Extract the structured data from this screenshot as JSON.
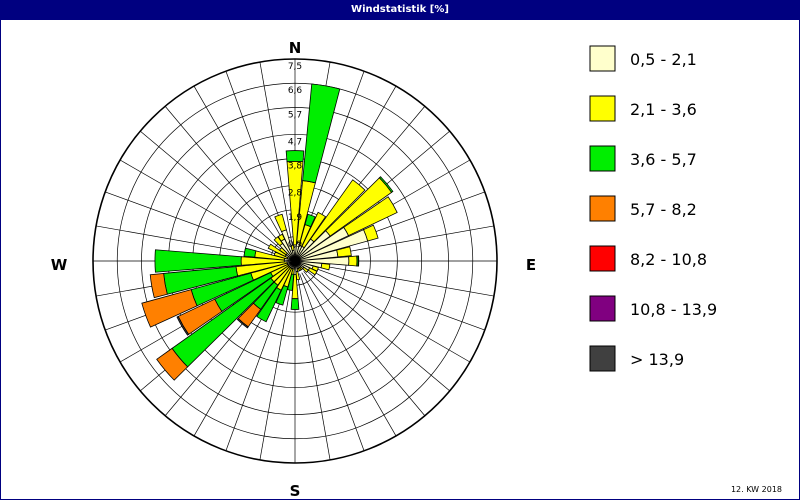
{
  "title": "Windstatistik [%]",
  "footer": "12. KW 2018",
  "chart_data": {
    "type": "polar-stacked-bar",
    "unit": "%",
    "compass": [
      "N",
      "E",
      "S",
      "W"
    ],
    "ring_labels": [
      "7,5",
      "6,6",
      "5,7",
      "4,7",
      "3,8",
      "2,8",
      "1,9",
      "0,9"
    ],
    "ring_values": [
      0.9,
      1.9,
      2.8,
      3.8,
      4.7,
      5.7,
      6.6,
      7.5
    ],
    "max": 7.5,
    "grid": true,
    "legend_position": "right",
    "classes": [
      {
        "label": "0,5 - 2,1",
        "color": "#ffffcc"
      },
      {
        "label": "2,1 - 3,6",
        "color": "#ffff00"
      },
      {
        "label": "3,6 - 5,7",
        "color": "#00ee00"
      },
      {
        "label": "5,7 - 8,2",
        "color": "#ff8000"
      },
      {
        "label": "8,2 - 10,8",
        "color": "#ff0000"
      },
      {
        "label": "10,8 - 13,9",
        "color": "#800080"
      },
      {
        "label": " > 13,9",
        "color": "#404040"
      }
    ],
    "sectors": [
      {
        "dir": 0,
        "values": [
          0.6,
          3.1,
          0.4,
          0,
          0,
          0,
          0
        ]
      },
      {
        "dir": 10,
        "values": [
          0.7,
          2.3,
          3.6,
          0,
          0,
          0,
          0
        ]
      },
      {
        "dir": 20,
        "values": [
          0.6,
          0.8,
          0.4,
          0,
          0,
          0,
          0
        ]
      },
      {
        "dir": 30,
        "values": [
          0.6,
          1.4,
          0,
          0,
          0,
          0,
          0
        ]
      },
      {
        "dir": 40,
        "values": [
          1.0,
          2.7,
          0,
          0,
          0,
          0,
          0
        ]
      },
      {
        "dir": 50,
        "values": [
          1.6,
          2.8,
          0.06,
          0,
          0,
          0,
          0
        ]
      },
      {
        "dir": 60,
        "values": [
          2.2,
          2.0,
          0,
          0,
          0,
          0,
          0
        ]
      },
      {
        "dir": 70,
        "values": [
          2.8,
          0.4,
          0,
          0,
          0,
          0,
          0
        ]
      },
      {
        "dir": 80,
        "values": [
          1.6,
          0.5,
          0,
          0,
          0,
          0,
          0
        ]
      },
      {
        "dir": 90,
        "values": [
          2.0,
          0.3,
          0.05,
          0,
          0,
          0,
          0.02
        ]
      },
      {
        "dir": 100,
        "values": [
          1.0,
          0.3,
          0,
          0,
          0,
          0,
          0
        ]
      },
      {
        "dir": 110,
        "values": [
          0.7,
          0.2,
          0,
          0,
          0,
          0,
          0
        ]
      },
      {
        "dir": 120,
        "values": [
          0.6,
          0.3,
          0,
          0,
          0,
          0,
          0
        ]
      },
      {
        "dir": 130,
        "values": [
          0.4,
          0.2,
          0,
          0,
          0,
          0,
          0
        ]
      },
      {
        "dir": 140,
        "values": [
          0.3,
          0.1,
          0,
          0,
          0,
          0,
          0
        ]
      },
      {
        "dir": 150,
        "values": [
          0.3,
          0.1,
          0,
          0,
          0,
          0,
          0
        ]
      },
      {
        "dir": 160,
        "values": [
          0.3,
          0.1,
          0,
          0,
          0,
          0,
          0
        ]
      },
      {
        "dir": 170,
        "values": [
          0.4,
          0.3,
          0,
          0,
          0,
          0,
          0
        ]
      },
      {
        "dir": 180,
        "values": [
          0.5,
          0.9,
          0.4,
          0,
          0,
          0,
          0
        ]
      },
      {
        "dir": 190,
        "values": [
          0.3,
          0.2,
          0.6,
          0,
          0,
          0,
          0
        ]
      },
      {
        "dir": 200,
        "values": [
          0.3,
          0.7,
          0.7,
          0,
          0,
          0,
          0
        ]
      },
      {
        "dir": 210,
        "values": [
          0.3,
          0.9,
          1.3,
          0,
          0,
          0,
          0
        ]
      },
      {
        "dir": 220,
        "values": [
          0.3,
          0.8,
          1.1,
          0.8,
          0,
          0,
          0.05
        ]
      },
      {
        "dir": 230,
        "values": [
          0.3,
          0.8,
          4.5,
          0.7,
          0,
          0,
          0
        ]
      },
      {
        "dir": 240,
        "values": [
          0.3,
          0.7,
          2.3,
          1.5,
          0,
          0,
          0.05
        ]
      },
      {
        "dir": 250,
        "values": [
          0.3,
          1.4,
          2.3,
          1.9,
          0,
          0,
          0
        ]
      },
      {
        "dir": 260,
        "values": [
          0.3,
          1.9,
          2.7,
          0.5,
          0,
          0,
          0
        ]
      },
      {
        "dir": 270,
        "values": [
          0.4,
          1.6,
          3.2,
          0,
          0,
          0,
          0
        ]
      },
      {
        "dir": 280,
        "values": [
          0.4,
          1.1,
          0.4,
          0,
          0,
          0,
          0
        ]
      },
      {
        "dir": 290,
        "values": [
          0.3,
          0.5,
          0,
          0,
          0,
          0,
          0
        ]
      },
      {
        "dir": 300,
        "values": [
          0.4,
          0.7,
          0,
          0,
          0,
          0,
          0
        ]
      },
      {
        "dir": 310,
        "values": [
          0.4,
          0.3,
          0,
          0,
          0,
          0,
          0
        ]
      },
      {
        "dir": 320,
        "values": [
          0.8,
          0.3,
          0,
          0,
          0,
          0,
          0
        ]
      },
      {
        "dir": 330,
        "values": [
          0.9,
          0.2,
          0,
          0,
          0,
          0,
          0
        ]
      },
      {
        "dir": 340,
        "values": [
          1.2,
          0.6,
          0,
          0,
          0,
          0,
          0
        ]
      },
      {
        "dir": 350,
        "values": [
          0.4,
          0.2,
          0,
          0,
          0,
          0,
          0
        ]
      }
    ]
  }
}
